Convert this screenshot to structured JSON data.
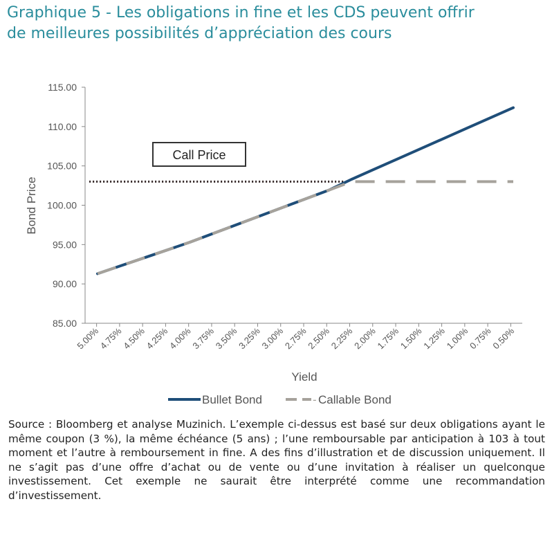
{
  "heading": {
    "line1": "Graphique 5 - Les obligations in fine et les CDS peuvent offrir",
    "line2": "de meilleures possibilités d’appréciation des cours"
  },
  "chart_data": {
    "type": "line",
    "xlabel": "Yield",
    "ylabel": "Bond Price",
    "ylim": [
      85,
      115
    ],
    "y_ticks": [
      "85.00",
      "90.00",
      "95.00",
      "100.00",
      "105.00",
      "110.00",
      "115.00"
    ],
    "categories": [
      "5.00%",
      "4.75%",
      "4.50%",
      "4.25%",
      "4.00%",
      "3.75%",
      "3.50%",
      "3.25%",
      "3.00%",
      "2.75%",
      "2.50%",
      "2.25%",
      "2.00%",
      "1.75%",
      "1.50%",
      "1.25%",
      "1.00%",
      "0.75%",
      "0.50%"
    ],
    "series": [
      {
        "name": "Bullet Bond",
        "color": "#1f4e79",
        "style": "solid",
        "values": [
          91.3,
          92.3,
          93.3,
          94.3,
          95.3,
          96.4,
          97.5,
          98.6,
          99.7,
          100.8,
          101.9,
          103.3,
          104.6,
          105.9,
          107.2,
          108.5,
          109.8,
          111.1,
          112.4
        ]
      },
      {
        "name": "Callable Bond",
        "color": "#a6a29b",
        "style": "dashed",
        "values": [
          91.3,
          92.3,
          93.3,
          94.3,
          95.3,
          96.4,
          97.5,
          98.6,
          99.7,
          100.8,
          101.9,
          103.0,
          103.0,
          103.0,
          103.0,
          103.0,
          103.0,
          103.0,
          103.0
        ]
      }
    ],
    "call_price": {
      "label": "Call Price",
      "value": 103.0
    },
    "legend_position": "bottom",
    "grid": false
  },
  "source": {
    "text": "Source : Bloomberg et analyse Muzinich. L’exemple ci-dessus est basé sur deux obligations ayant le même coupon (3 %), la même échéance (5 ans) ; l’une remboursable par anticipation à 103 à tout moment et l’autre à remboursement in fine. A des fins d’illustration et de discussion uniquement. Il ne s’agit pas d’une offre d’achat ou de vente ou d’une invitation à réaliser un quelconque investissement. Cet exemple ne saurait être interprété comme une recommandation d’investissement."
  }
}
